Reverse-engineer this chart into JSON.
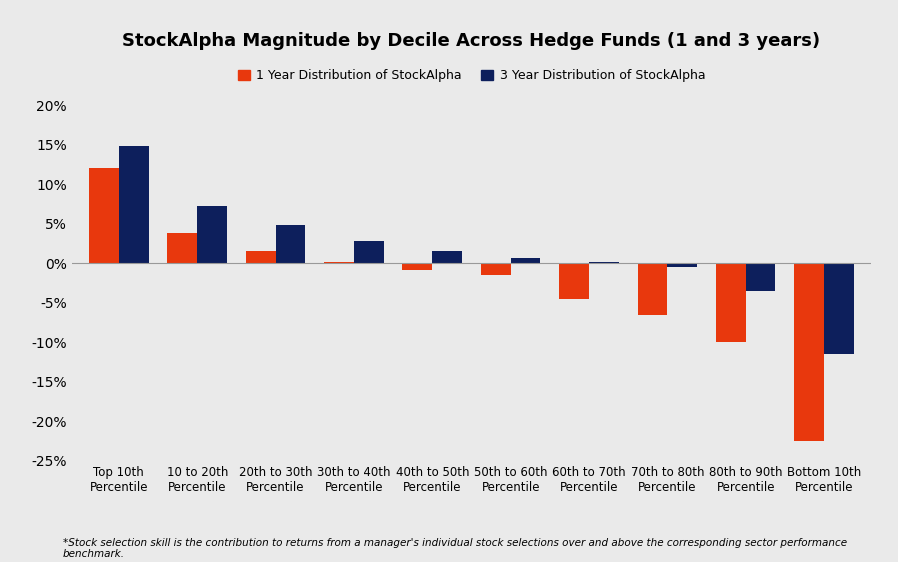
{
  "title": "StockAlpha Magnitude by Decile Across Hedge Funds (1 and 3 years)",
  "categories": [
    "Top 10th\nPercentile",
    "10 to 20th\nPercentile",
    "20th to 30th\nPercentile",
    "30th to 40th\nPercentile",
    "40th to 50th\nPercentile",
    "50th to 60th\nPercentile",
    "60th to 70th\nPercentile",
    "70th to 80th\nPercentile",
    "80th to 90th\nPercentile",
    "Bottom 10th\nPercentile"
  ],
  "values_1yr": [
    0.12,
    0.038,
    0.015,
    0.002,
    -0.008,
    -0.015,
    -0.045,
    -0.065,
    -0.1,
    -0.225
  ],
  "values_3yr": [
    0.148,
    0.072,
    0.048,
    0.028,
    0.015,
    0.007,
    0.002,
    -0.005,
    -0.035,
    -0.115
  ],
  "color_1yr": "#E8380D",
  "color_3yr": "#0D1F5C",
  "legend_1yr": "1 Year Distribution of StockAlpha",
  "legend_3yr": "3 Year Distribution of StockAlpha",
  "ylim": [
    -0.25,
    0.205
  ],
  "yticks": [
    -0.25,
    -0.2,
    -0.15,
    -0.1,
    -0.05,
    0.0,
    0.05,
    0.1,
    0.15,
    0.2
  ],
  "footnote": "*Stock selection skill is the contribution to returns from a manager's individual stock selections over and above the corresponding sector performance\nbenchmark.",
  "bg_color": "#EAEAEA",
  "plot_bg_color": "#EAEAEA",
  "bar_width": 0.38
}
